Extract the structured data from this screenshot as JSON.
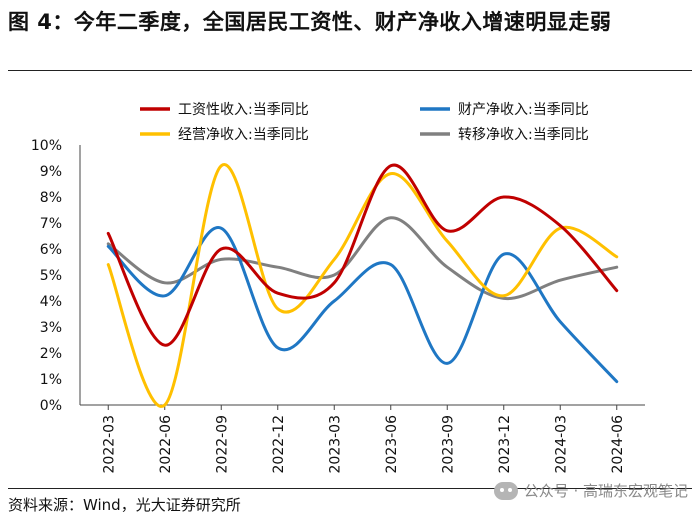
{
  "figure": {
    "title": "图 4：今年二季度，全国居民工资性、财产净收入增速明显走弱",
    "source": "资料来源：Wind，光大证券研究所",
    "watermark": "公众号 · 高瑞东宏观笔记"
  },
  "chart_data": {
    "type": "line",
    "title": "图 4：今年二季度，全国居民工资性、财产净收入增速明显走弱",
    "xlabel": "",
    "ylabel": "",
    "ylim": [
      0,
      10
    ],
    "y_ticks": [
      "0%",
      "1%",
      "2%",
      "3%",
      "4%",
      "5%",
      "6%",
      "7%",
      "8%",
      "9%",
      "10%"
    ],
    "x_ticks": [
      "2022-03",
      "2022-06",
      "2022-09",
      "2022-12",
      "2023-03",
      "2023-06",
      "2023-09",
      "2023-12",
      "2024-03",
      "2024-06"
    ],
    "categories": [
      "2022-03",
      "2022-06",
      "2022-09",
      "2022-12",
      "2023-03",
      "2023-06",
      "2023-09",
      "2023-12",
      "2024-03",
      "2024-06"
    ],
    "legend_position": "top",
    "series": [
      {
        "name": "工资性收入:当季同比",
        "color": "#c00000",
        "values": [
          6.6,
          2.3,
          6.0,
          4.3,
          4.7,
          9.2,
          6.7,
          8.0,
          6.9,
          4.4
        ]
      },
      {
        "name": "财产净收入:当季同比",
        "color": "#1f77c4",
        "values": [
          6.1,
          4.2,
          6.8,
          2.2,
          4.0,
          5.4,
          1.6,
          5.8,
          3.2,
          0.9
        ]
      },
      {
        "name": "经营净收入:当季同比",
        "color": "#ffc000",
        "values": [
          5.4,
          0.0,
          9.2,
          3.7,
          5.6,
          8.9,
          6.3,
          4.2,
          6.8,
          5.7
        ]
      },
      {
        "name": "转移净收入:当季同比",
        "color": "#808080",
        "values": [
          6.2,
          4.7,
          5.6,
          5.3,
          5.0,
          7.2,
          5.3,
          4.1,
          4.8,
          5.3
        ]
      }
    ]
  }
}
